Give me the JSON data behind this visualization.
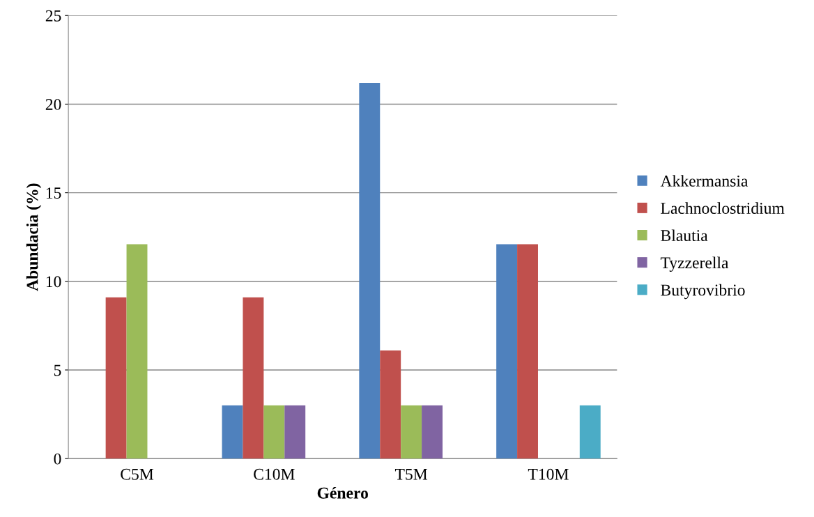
{
  "chart_data": {
    "type": "bar",
    "xlabel": "Género",
    "ylabel": "Abundacia (%)",
    "categories": [
      "C5M",
      "C10M",
      "T5M",
      "T10M"
    ],
    "series": [
      {
        "name": "Akkermansia",
        "color": "#4f81bd",
        "values": [
          0,
          3,
          21.2,
          12.1
        ]
      },
      {
        "name": "Lachnoclostridium",
        "color": "#c0504d",
        "values": [
          9.1,
          9.1,
          6.1,
          12.1
        ]
      },
      {
        "name": "Blautia",
        "color": "#9bbb59",
        "values": [
          12.1,
          3,
          3,
          0
        ]
      },
      {
        "name": "Tyzzerella",
        "color": "#8064a2",
        "values": [
          0,
          3,
          3,
          0
        ]
      },
      {
        "name": "Butyrovibrio",
        "color": "#4bacc6",
        "values": [
          0,
          0,
          0,
          3
        ]
      }
    ],
    "ylim": [
      0,
      25
    ],
    "yticks": [
      0,
      5,
      10,
      15,
      20,
      25
    ],
    "grid": "y",
    "legend": "right"
  }
}
